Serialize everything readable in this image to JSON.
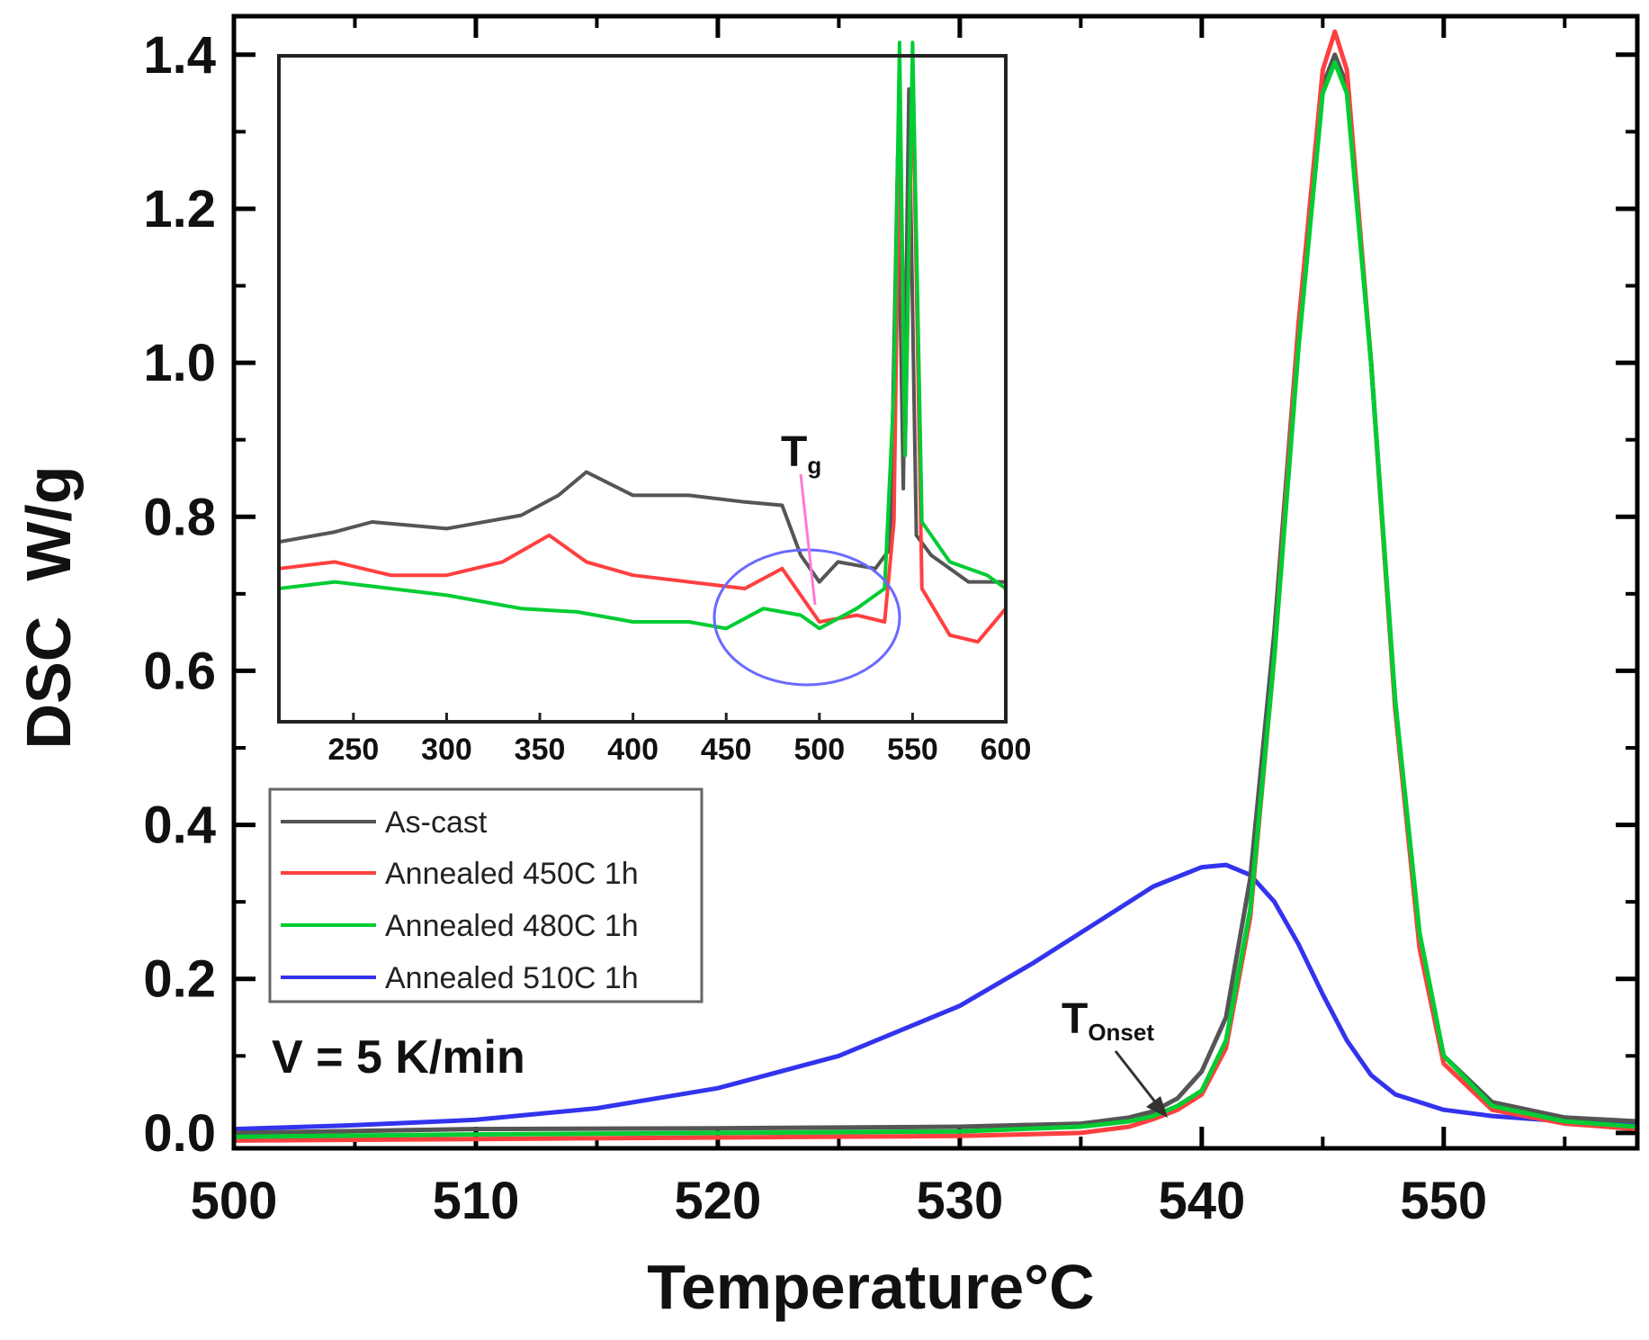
{
  "chart_data": [
    {
      "id": "main",
      "type": "line",
      "title": "",
      "xlabel": "Temperature",
      "xlabel_unit": "°C",
      "ylabel": "DSC  W/g",
      "xlim": [
        500,
        558
      ],
      "ylim": [
        -0.02,
        1.45
      ],
      "xticks": [
        500,
        510,
        520,
        530,
        540,
        550
      ],
      "xtick_labels": [
        "500",
        "510",
        "520",
        "530",
        "540",
        "550"
      ],
      "yticks": [
        0.0,
        0.2,
        0.4,
        0.6,
        0.8,
        1.0,
        1.2,
        1.4
      ],
      "ytick_labels": [
        "0.0",
        "0.2",
        "0.4",
        "0.6",
        "0.8",
        "1.0",
        "1.2",
        "1.4"
      ],
      "series": [
        {
          "name": "As-cast",
          "color": "#555555",
          "x": [
            500,
            510,
            520,
            530,
            535,
            537,
            538,
            539,
            540,
            541,
            542,
            543,
            544,
            545,
            545.5,
            546,
            547,
            548,
            549,
            550,
            552,
            555,
            558
          ],
          "y": [
            0.0,
            0.005,
            0.006,
            0.008,
            0.012,
            0.02,
            0.028,
            0.045,
            0.08,
            0.15,
            0.33,
            0.65,
            1.05,
            1.36,
            1.4,
            1.36,
            1.0,
            0.55,
            0.25,
            0.1,
            0.04,
            0.02,
            0.015
          ]
        },
        {
          "name": "Annealed 450C 1h",
          "color": "#ff4040",
          "x": [
            500,
            510,
            520,
            530,
            535,
            537,
            538,
            539,
            540,
            541,
            542,
            543,
            544,
            545,
            545.5,
            546,
            547,
            548,
            549,
            550,
            552,
            555,
            558
          ],
          "y": [
            -0.01,
            -0.008,
            -0.006,
            -0.004,
            0.0,
            0.008,
            0.018,
            0.03,
            0.05,
            0.11,
            0.28,
            0.62,
            1.05,
            1.38,
            1.43,
            1.38,
            1.0,
            0.55,
            0.24,
            0.09,
            0.03,
            0.012,
            0.005
          ]
        },
        {
          "name": "Annealed 480C 1h",
          "color": "#00cc33",
          "x": [
            500,
            510,
            520,
            530,
            535,
            537,
            538,
            539,
            540,
            541,
            542,
            543,
            544,
            545,
            545.5,
            546,
            547,
            548,
            549,
            550,
            552,
            555,
            558
          ],
          "y": [
            -0.005,
            -0.002,
            0.0,
            0.002,
            0.008,
            0.015,
            0.022,
            0.035,
            0.055,
            0.12,
            0.29,
            0.62,
            1.02,
            1.35,
            1.39,
            1.35,
            1.0,
            0.56,
            0.26,
            0.1,
            0.035,
            0.015,
            0.008
          ]
        },
        {
          "name": "Annealed 510C 1h",
          "color": "#3333ee",
          "x": [
            500,
            505,
            510,
            515,
            520,
            525,
            530,
            533,
            536,
            538,
            540,
            541,
            542,
            543,
            544,
            545,
            546,
            547,
            548,
            550,
            552,
            555,
            558
          ],
          "y": [
            0.005,
            0.01,
            0.017,
            0.032,
            0.058,
            0.1,
            0.165,
            0.22,
            0.28,
            0.32,
            0.345,
            0.348,
            0.335,
            0.3,
            0.245,
            0.18,
            0.12,
            0.075,
            0.05,
            0.03,
            0.022,
            0.015,
            0.012
          ]
        }
      ],
      "legend": {
        "position": "lower-left",
        "entries": [
          "As-cast",
          "Annealed 450C 1h",
          "Annealed 480C 1h",
          "Annealed 510C 1h"
        ]
      },
      "annotations": [
        {
          "text": "V = 5 K/min"
        },
        {
          "text": "T",
          "subscript": "Onset",
          "x": 538,
          "y": 0.025
        }
      ]
    },
    {
      "id": "inset",
      "type": "line",
      "xlabel": "",
      "ylabel": "",
      "xlim": [
        210,
        600
      ],
      "ylim": [
        0,
        1
      ],
      "xticks": [
        250,
        300,
        350,
        400,
        450,
        500,
        550,
        600
      ],
      "xtick_labels": [
        "250",
        "300",
        "350",
        "400",
        "450",
        "500",
        "550",
        "600"
      ],
      "series": [
        {
          "name": "As-cast",
          "color": "#555555",
          "x": [
            210,
            240,
            260,
            300,
            340,
            360,
            375,
            400,
            430,
            460,
            480,
            490,
            500,
            510,
            530,
            538,
            542,
            545,
            548,
            552,
            560,
            580,
            600
          ],
          "y": [
            0.27,
            0.285,
            0.3,
            0.29,
            0.31,
            0.34,
            0.375,
            0.34,
            0.34,
            0.33,
            0.325,
            0.25,
            0.21,
            0.24,
            0.23,
            0.26,
            0.85,
            0.35,
            0.95,
            0.28,
            0.25,
            0.21,
            0.21
          ]
        },
        {
          "name": "Annealed 450C 1h",
          "color": "#ff4040",
          "x": [
            210,
            240,
            270,
            300,
            330,
            355,
            375,
            400,
            430,
            460,
            480,
            500,
            520,
            535,
            540,
            543,
            546,
            550,
            555,
            570,
            585,
            600
          ],
          "y": [
            0.23,
            0.24,
            0.22,
            0.22,
            0.24,
            0.28,
            0.24,
            0.22,
            0.21,
            0.2,
            0.23,
            0.15,
            0.16,
            0.15,
            0.3,
            0.9,
            0.4,
            0.98,
            0.2,
            0.13,
            0.12,
            0.17
          ]
        },
        {
          "name": "Annealed 480C 1h",
          "color": "#00cc33",
          "x": [
            210,
            240,
            270,
            300,
            340,
            370,
            400,
            430,
            450,
            470,
            490,
            500,
            520,
            535,
            540,
            543,
            546,
            550,
            555,
            570,
            590,
            600
          ],
          "y": [
            0.2,
            0.21,
            0.2,
            0.19,
            0.17,
            0.165,
            0.15,
            0.15,
            0.14,
            0.17,
            0.16,
            0.14,
            0.17,
            0.2,
            0.5,
            1.02,
            0.4,
            1.02,
            0.3,
            0.24,
            0.22,
            0.2
          ]
        }
      ],
      "annotations": [
        {
          "text": "T",
          "subscript": "g",
          "x": 500,
          "y": 0.16
        }
      ]
    }
  ]
}
